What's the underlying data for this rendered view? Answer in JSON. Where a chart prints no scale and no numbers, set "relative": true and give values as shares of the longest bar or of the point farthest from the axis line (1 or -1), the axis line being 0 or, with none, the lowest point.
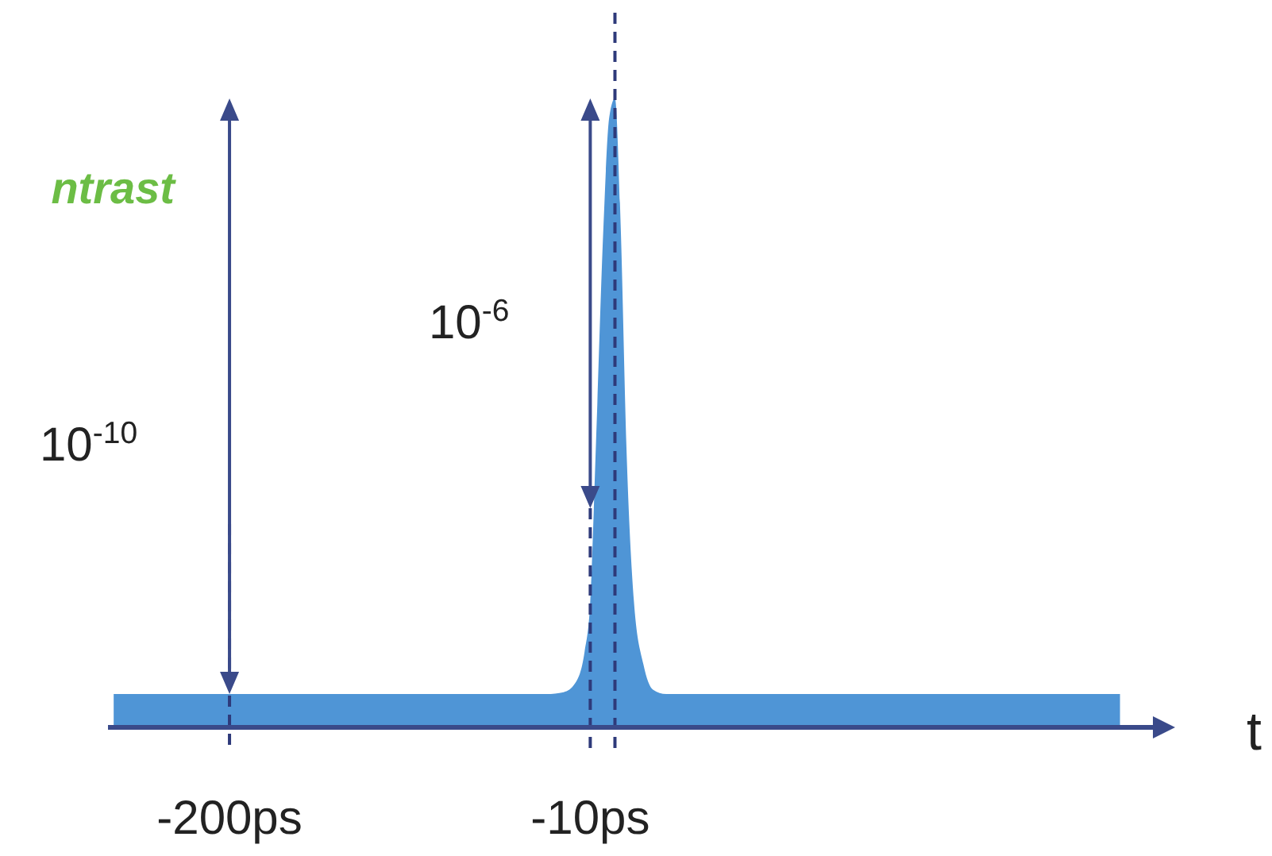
{
  "chart_data": {
    "type": "area",
    "relative": true,
    "xlabel": "t",
    "annotations": [
      "ntrast",
      "10$^{-10}$",
      "10$^{-6}$"
    ],
    "x": [
      -261,
      -33,
      -24,
      -18,
      -13,
      -10,
      -7,
      -3,
      0,
      3,
      6,
      9,
      13,
      18,
      23,
      30,
      269
    ],
    "series": [
      {
        "color": "#4f95d6",
        "values": [
          0.053,
          0.053,
          0.056,
          0.07,
          0.12,
          0.2,
          0.45,
          0.8,
          0.97,
          1,
          0.8,
          0.45,
          0.2,
          0.1,
          0.06,
          0.053,
          0.053
        ]
      }
    ],
    "xlim": [
      -264,
      288
    ],
    "xticks": [
      {
        "value": -200,
        "label": "-200ps"
      },
      {
        "value": -10,
        "label": "-10ps"
      }
    ],
    "tick_labels": "x",
    "ref_lines": [
      {
        "axis": "x",
        "value": -200,
        "color": "#2e3a7a",
        "line_style": "dashed"
      },
      {
        "axis": "x",
        "value": -10,
        "color": "#2e3a7a",
        "line_style": "dashed"
      },
      {
        "axis": "x",
        "value": 3,
        "color": "#2e3a7a",
        "line_style": "dashed"
      }
    ]
  }
}
